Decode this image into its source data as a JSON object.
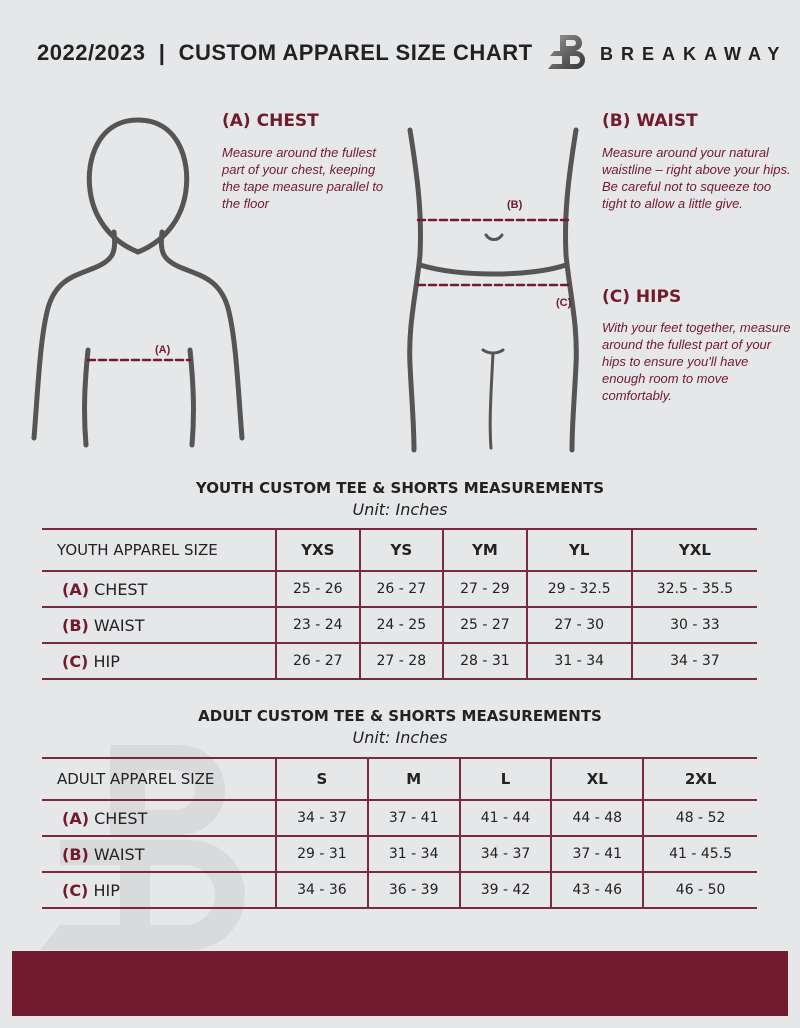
{
  "header": {
    "title": "2022/2023  |  CUSTOM APPAREL SIZE CHART",
    "brand": "BREAKAWAY",
    "logo_letter": "B"
  },
  "guide": {
    "chest": {
      "heading": "(A) CHEST",
      "text": "Measure around the fullest part of your chest, keeping the tape measure parallel to the floor",
      "marker": "(A)"
    },
    "waist": {
      "heading": "(B) WAIST",
      "text": "Measure around your natural waistline – right above your hips. Be careful not to squeeze too tight to allow a little give.",
      "marker": "(B)"
    },
    "hips": {
      "heading": "(C) HIPS",
      "text": "With your feet together, measure around the fullest part of your hips to ensure you'll have enough room to move comfortably.",
      "marker": "(C)"
    }
  },
  "youth": {
    "title": "YOUTH CUSTOM TEE & SHORTS MEASUREMENTS",
    "unit": "Unit: Inches",
    "header": "YOUTH APPAREL SIZE",
    "sizes": [
      "YXS",
      "YS",
      "YM",
      "YL",
      "YXL"
    ],
    "rows": [
      {
        "letter": "(A)",
        "name": "CHEST",
        "values": [
          "25 - 26",
          "26 - 27",
          "27 - 29",
          "29 - 32.5",
          "32.5 - 35.5"
        ]
      },
      {
        "letter": "(B)",
        "name": "WAIST",
        "values": [
          "23 - 24",
          "24 - 25",
          "25 - 27",
          "27 - 30",
          "30 - 33"
        ]
      },
      {
        "letter": "(C)",
        "name": "HIP",
        "values": [
          "26 - 27",
          "27 - 28",
          "28 - 31",
          "31 - 34",
          "34 - 37"
        ]
      }
    ]
  },
  "adult": {
    "title": "ADULT CUSTOM TEE & SHORTS MEASUREMENTS",
    "unit": "Unit: Inches",
    "header": "ADULT APPAREL SIZE",
    "sizes": [
      "S",
      "M",
      "L",
      "XL",
      "2XL"
    ],
    "rows": [
      {
        "letter": "(A)",
        "name": "CHEST",
        "values": [
          "34 - 37",
          "37 - 41",
          "41 - 44",
          "44 - 48",
          "48 - 52"
        ]
      },
      {
        "letter": "(B)",
        "name": "WAIST",
        "values": [
          "29 - 31",
          "31 - 34",
          "34 - 37",
          "37 - 41",
          "41 - 45.5"
        ]
      },
      {
        "letter": "(C)",
        "name": "HIP",
        "values": [
          "34 - 36",
          "36 - 39",
          "39 - 42",
          "43 - 46",
          "46 - 50"
        ]
      }
    ]
  },
  "colors": {
    "accent": "#721a2e",
    "background": "#e6e7e9"
  }
}
